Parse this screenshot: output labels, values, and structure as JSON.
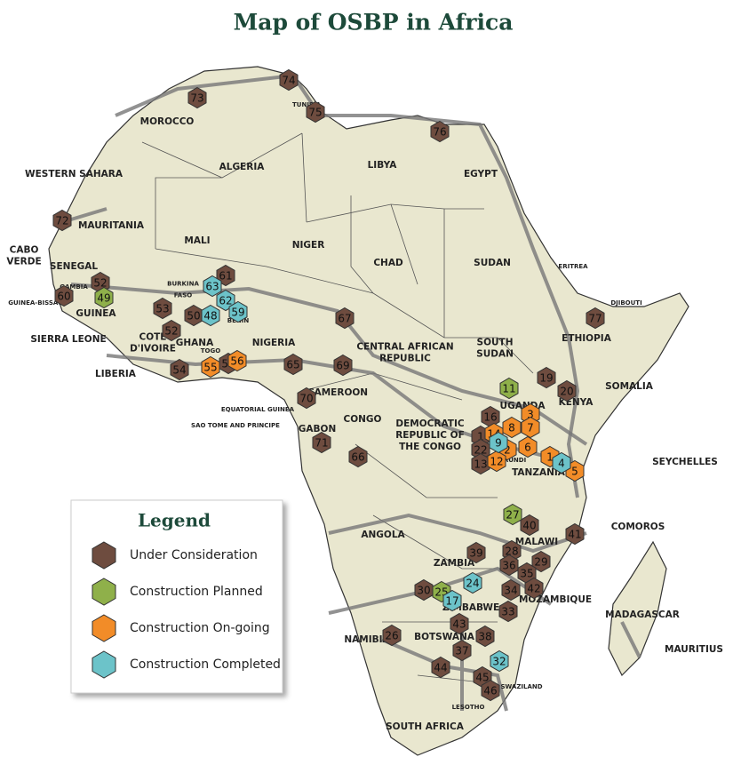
{
  "title": "Map of OSBP in Africa",
  "legend": {
    "title": "Legend",
    "items": [
      {
        "name": "Under Consideration",
        "color": "#6e4c3f",
        "markers": [
          73,
          74,
          75,
          76,
          72,
          52,
          60,
          53,
          52,
          50,
          61,
          67,
          54,
          57,
          65,
          69,
          70,
          71,
          66,
          16,
          19,
          20,
          77,
          1,
          22,
          13,
          40,
          41,
          28,
          29,
          36,
          35,
          39,
          34,
          42,
          33,
          30,
          26,
          43,
          38,
          37,
          44,
          45,
          46
        ]
      },
      {
        "name": "Construction Planned",
        "color": "#8fb04a",
        "markers": [
          49,
          11,
          27,
          25
        ]
      },
      {
        "name": "Construction On-going",
        "color": "#f28c28",
        "markers": [
          56,
          55,
          14,
          8,
          3,
          7,
          2,
          12,
          6,
          1,
          5
        ]
      },
      {
        "name": "Construction Completed",
        "color": "#6cc3c9",
        "markers": [
          63,
          62,
          59,
          48,
          9,
          4,
          24,
          17,
          32
        ]
      }
    ]
  },
  "countries": [
    [
      "MOROCCO"
    ],
    [
      "ALGERIA"
    ],
    [
      "TUNISIA"
    ],
    [
      "LIBYA"
    ],
    [
      "EGYPT"
    ],
    [
      "WESTERN SAHARA"
    ],
    [
      "MAURITANIA"
    ],
    [
      "MALI"
    ],
    [
      "NIGER"
    ],
    [
      "CHAD"
    ],
    [
      "SUDAN"
    ],
    [
      "ERITREA"
    ],
    [
      "DJIBOUTI"
    ],
    [
      "ETHIOPIA"
    ],
    [
      "SOMALIA"
    ],
    [
      "KENYA"
    ],
    [
      "CABO",
      "VERDE"
    ],
    [
      "SENEGAL"
    ],
    [
      "GAMBIA"
    ],
    [
      "GUINEA-BISSAU"
    ],
    [
      "GUINEA"
    ],
    [
      "SIERRA LEONE"
    ],
    [
      "LIBERIA"
    ],
    [
      "COTE",
      "D'IVOIRE"
    ],
    [
      "GHANA"
    ],
    [
      "BURKINA",
      "FASO"
    ],
    [
      "TOGO"
    ],
    [
      "BENIN"
    ],
    [
      "NIGERIA"
    ],
    [
      "CAMEROON"
    ],
    [
      "CENTRAL AFRICAN",
      "REPUBLIC"
    ],
    [
      "SOUTH",
      "SUDAN"
    ],
    [
      "UGANDA"
    ],
    [
      "EQUATORIAL GUINEA"
    ],
    [
      "SAO TOME AND PRINCIPE"
    ],
    [
      "GABON"
    ],
    [
      "CONGO"
    ],
    [
      "DEMOCRATIC",
      "REPUBLIC OF",
      "THE CONGO"
    ],
    [
      "BURUNDI"
    ],
    [
      "TANZANIA"
    ],
    [
      "SEYCHELLES"
    ],
    [
      "COMOROS"
    ],
    [
      "MALAWI"
    ],
    [
      "ANGOLA"
    ],
    [
      "ZAMBIA"
    ],
    [
      "MOZAMBIQUE"
    ],
    [
      "ZIMBABWE"
    ],
    [
      "MADAGASCAR"
    ],
    [
      "MAURITIUS"
    ],
    [
      "NAMIBIA"
    ],
    [
      "BOTSWANA"
    ],
    [
      "SWAZILAND"
    ],
    [
      "LESOTHO"
    ],
    [
      "SOUTH AFRICA"
    ]
  ]
}
